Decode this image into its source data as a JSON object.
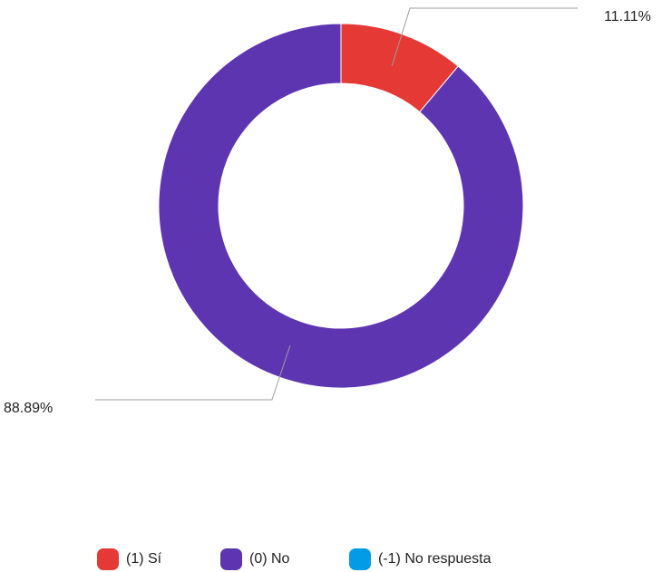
{
  "chart_data": {
    "type": "pie",
    "variant": "donut",
    "categories": [
      "(1) Sí",
      "(0) No",
      "(-1) No respuesta"
    ],
    "values": [
      11.11,
      88.89,
      0
    ],
    "value_labels": [
      "11.11%",
      "88.89%",
      ""
    ],
    "colors": [
      "#e53935",
      "#5e35b1",
      "#039be5"
    ],
    "start_angle_deg": 0,
    "direction": "clockwise",
    "legend_position": "bottom",
    "title": ""
  },
  "legend": {
    "items": [
      {
        "label": "(1) Sí",
        "color": "#e53935"
      },
      {
        "label": "(0) No",
        "color": "#5e35b1"
      },
      {
        "label": "(-1) No respuesta",
        "color": "#039be5"
      }
    ]
  }
}
